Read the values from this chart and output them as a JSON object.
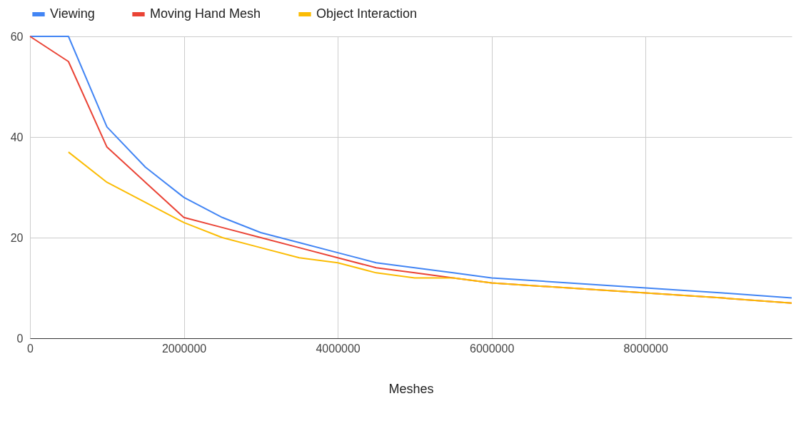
{
  "chart_data": {
    "type": "line",
    "xlabel": "Meshes",
    "x": [
      0,
      500000,
      1000000,
      1500000,
      2000000,
      2500000,
      3000000,
      3500000,
      4000000,
      4500000,
      5000000,
      5500000,
      6000000,
      7000000,
      8000000,
      9000000,
      9900000
    ],
    "series": [
      {
        "name": "Viewing",
        "color": "#4285f4",
        "values": [
          60,
          60,
          42,
          34,
          28,
          24,
          21,
          19,
          17,
          15,
          14,
          13,
          12,
          11,
          10,
          9,
          8
        ]
      },
      {
        "name": "Moving Hand Mesh",
        "color": "#ea4335",
        "values": [
          60,
          55,
          38,
          31,
          24,
          22,
          20,
          18,
          16,
          14,
          13,
          12,
          11,
          10,
          9,
          8,
          7
        ]
      },
      {
        "name": "Object Interaction",
        "color": "#fbbc04",
        "values": [
          null,
          37,
          31,
          27,
          23,
          20,
          18,
          16,
          15,
          13,
          12,
          12,
          11,
          10,
          9,
          8,
          7
        ]
      }
    ],
    "xlim": [
      0,
      9900000
    ],
    "xticks": [
      0,
      2000000,
      4000000,
      6000000,
      8000000
    ],
    "ylim": [
      0,
      60
    ],
    "yticks": [
      0,
      20,
      40,
      60
    ],
    "grid": true,
    "legend": "top",
    "marker": "none",
    "line_style": "solid"
  }
}
